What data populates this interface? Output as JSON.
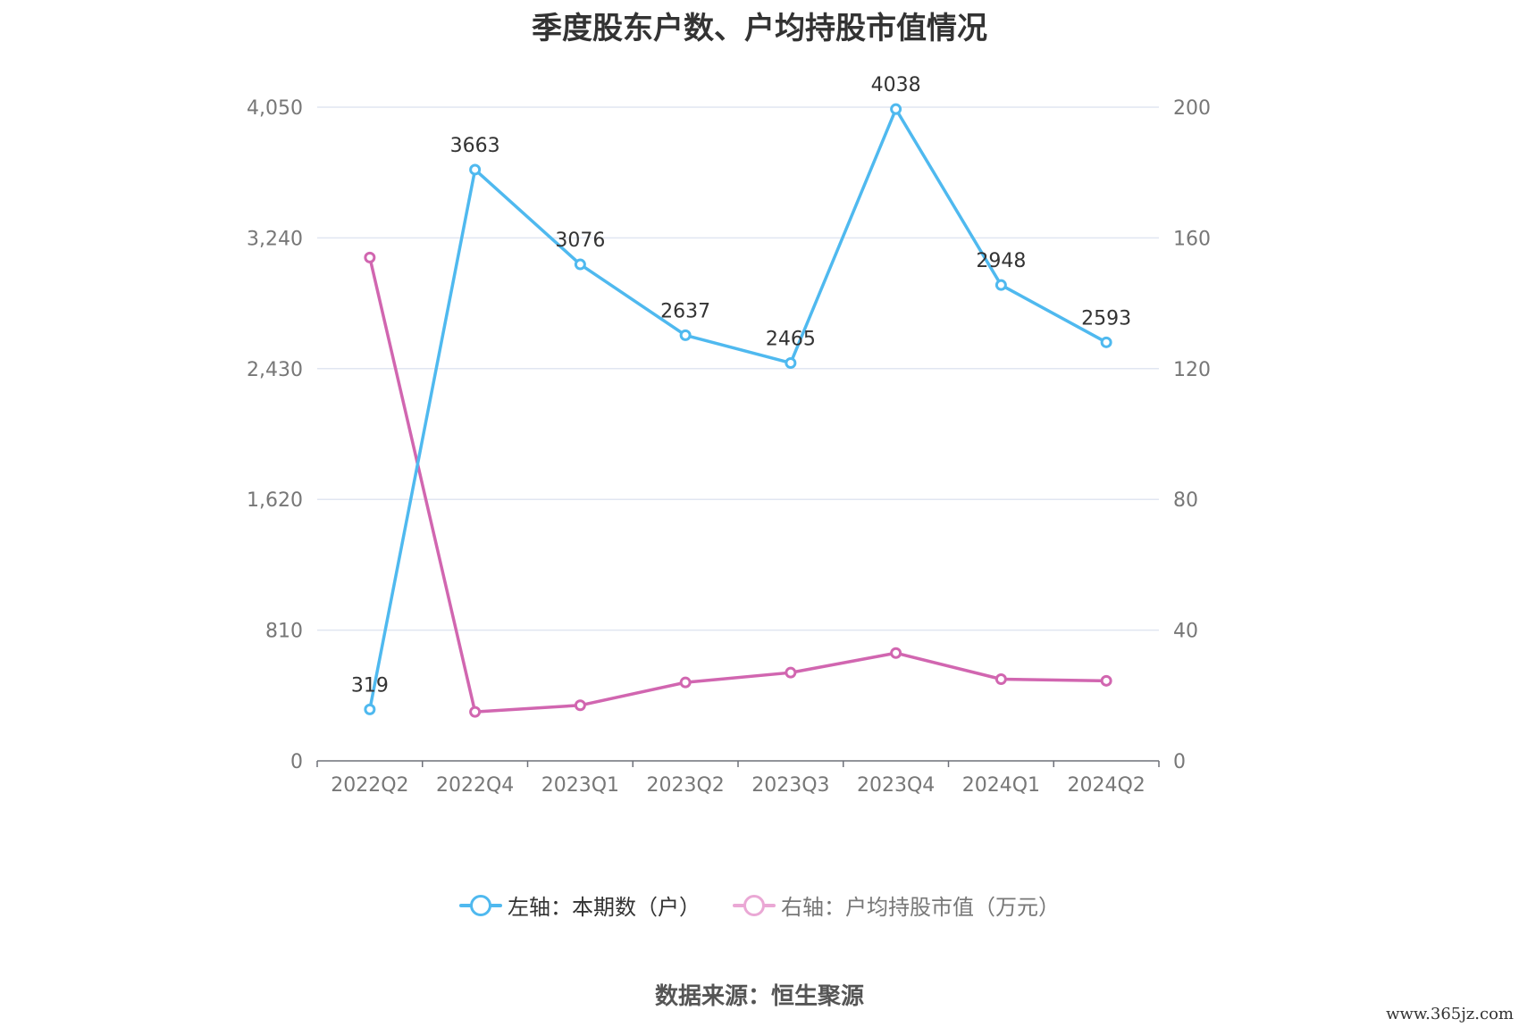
{
  "chart_data": {
    "type": "line",
    "title": "季度股东户数、户均持股市值情况",
    "categories": [
      "2022Q2",
      "2022Q4",
      "2023Q1",
      "2023Q2",
      "2023Q3",
      "2023Q4",
      "2024Q1",
      "2024Q2"
    ],
    "series": [
      {
        "name": "左轴：本期数（户）",
        "axis": "left",
        "color": "#4fb9ef",
        "values": [
          319,
          3663,
          3076,
          2637,
          2465,
          4038,
          2948,
          2593
        ],
        "labels": [
          "319",
          "3663",
          "3076",
          "2637",
          "2465",
          "4038",
          "2948",
          "2593"
        ]
      },
      {
        "name": "右轴：户均持股市值（万元）",
        "axis": "right",
        "color": "#d166b0",
        "legend_color": "#eaa8d5",
        "values": [
          154,
          15,
          17,
          24,
          27,
          33,
          25,
          24.5
        ]
      }
    ],
    "y_left": {
      "ticks": [
        "0",
        "810",
        "1,620",
        "2,430",
        "3,240",
        "4,050"
      ],
      "min": 0,
      "max": 4050
    },
    "y_right": {
      "ticks": [
        "0",
        "40",
        "80",
        "120",
        "160",
        "200"
      ],
      "min": 0,
      "max": 200
    },
    "grid": true,
    "legend_position": "bottom",
    "source": "数据来源：恒生聚源"
  },
  "watermark": "www.365jz.com"
}
